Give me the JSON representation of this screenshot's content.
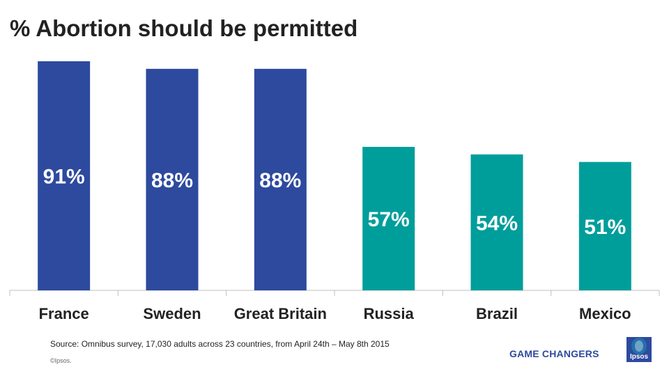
{
  "title": "% Abortion should be permitted",
  "chart_data": {
    "type": "bar",
    "categories": [
      "France",
      "Sweden",
      "Great Britain",
      "Russia",
      "Brazil",
      "Mexico"
    ],
    "values": [
      91,
      88,
      88,
      57,
      54,
      51
    ],
    "value_labels": [
      "91%",
      "88%",
      "88%",
      "57%",
      "54%",
      "51%"
    ],
    "bar_colors": [
      "#2e4a9e",
      "#2e4a9e",
      "#2e4a9e",
      "#009e9b",
      "#009e9b",
      "#009e9b"
    ],
    "ylim": [
      0,
      91
    ],
    "grid": false,
    "label_color": "#ffffff"
  },
  "footer": {
    "source": "Source: Omnibus survey, 17,030 adults across 23 countries, from April 24th – May 8th 2015",
    "copyright": "©Ipsos.",
    "tagline": "GAME CHANGERS",
    "logo_text": "Ipsos"
  },
  "colors": {
    "brand_blue": "#2e4a9e",
    "teal": "#009e9b",
    "logo_bg": "#2e4a9e"
  }
}
